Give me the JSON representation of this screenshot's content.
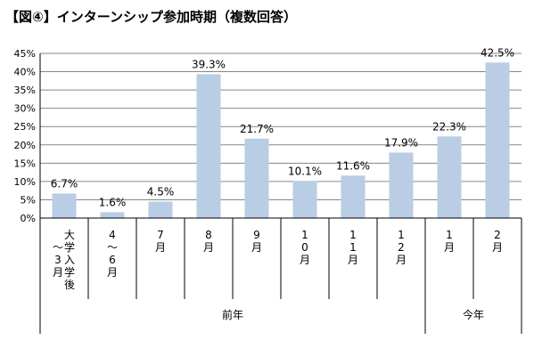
{
  "title": "【図④】インターンシップ参加時期（複数回答）",
  "colors": {
    "bar": "#b9cde5",
    "grid": "#868686",
    "axis": "#000000"
  },
  "chart_data": {
    "type": "bar",
    "title": "【図④】インターンシップ参加時期（複数回答）",
    "xlabel": "",
    "ylabel": "",
    "ylim": [
      0,
      45
    ],
    "yticks": [
      0,
      5,
      10,
      15,
      20,
      25,
      30,
      35,
      40,
      45
    ],
    "ytick_labels": [
      "0%",
      "5%",
      "10%",
      "15%",
      "20%",
      "25%",
      "30%",
      "35%",
      "40%",
      "45%"
    ],
    "grid": true,
    "legend": "none",
    "categories": [
      "大学入学後～3月",
      "4～6月",
      "7月",
      "8月",
      "9月",
      "10月",
      "11月",
      "12月",
      "1月",
      "2月"
    ],
    "category_lines": [
      [
        "大",
        "学",
        "入",
        "学",
        "後"
      ],
      [
        "～",
        "3",
        "月"
      ],
      [
        "4",
        "～",
        "6",
        "月"
      ],
      [
        "7",
        "月"
      ],
      [
        "8",
        "月"
      ],
      [
        "9",
        "月"
      ],
      [
        "1",
        "0",
        "月"
      ],
      [
        "1",
        "1",
        "月"
      ],
      [
        "1",
        "2",
        "月"
      ],
      [
        "1",
        "月"
      ],
      [
        "2",
        "月"
      ]
    ],
    "values": [
      6.7,
      1.6,
      4.5,
      39.3,
      21.7,
      10.1,
      11.6,
      17.9,
      22.3,
      42.5
    ],
    "data_labels": [
      "6.7%",
      "1.6%",
      "4.5%",
      "39.3%",
      "21.7%",
      "10.1%",
      "11.6%",
      "17.9%",
      "22.3%",
      "42.5%"
    ],
    "groups": [
      {
        "label": "前年",
        "start": 0,
        "end": 7
      },
      {
        "label": "今年",
        "start": 8,
        "end": 9
      }
    ]
  }
}
